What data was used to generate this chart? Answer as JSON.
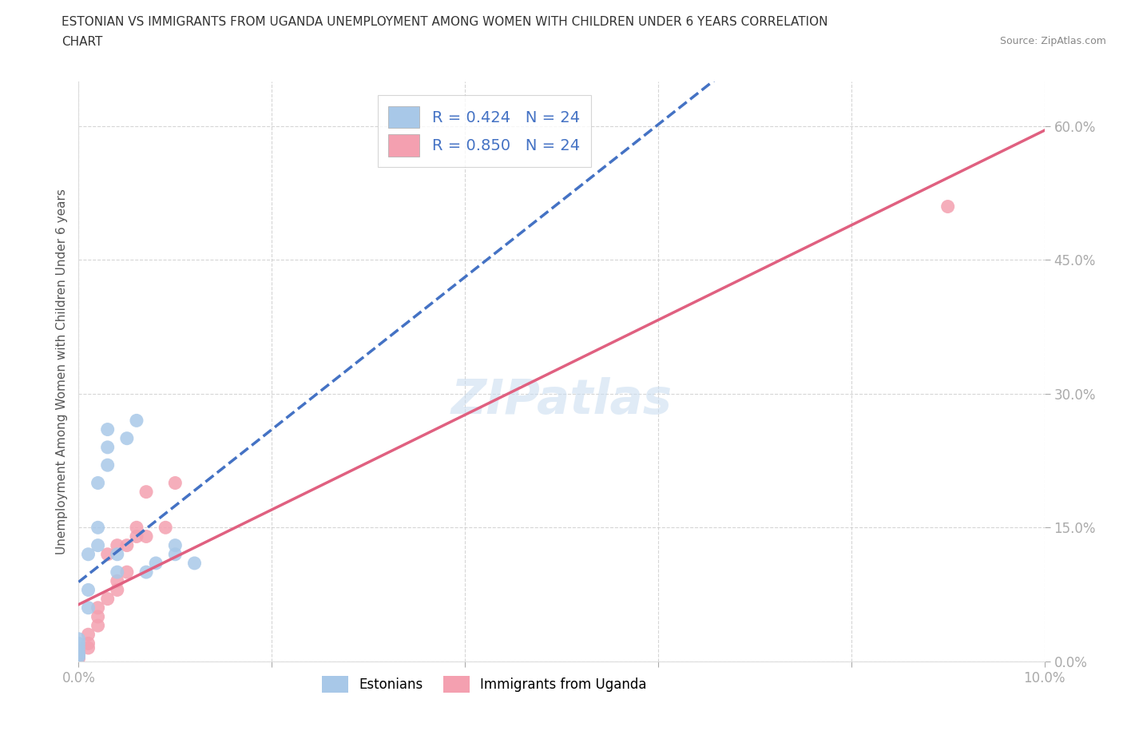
{
  "title_line1": "ESTONIAN VS IMMIGRANTS FROM UGANDA UNEMPLOYMENT AMONG WOMEN WITH CHILDREN UNDER 6 YEARS CORRELATION",
  "title_line2": "CHART",
  "source": "Source: ZipAtlas.com",
  "ylabel": "Unemployment Among Women with Children Under 6 years",
  "r_estonian": 0.424,
  "n_estonian": 24,
  "r_uganda": 0.85,
  "n_uganda": 24,
  "xlim": [
    0.0,
    0.1
  ],
  "ylim": [
    0.0,
    0.65
  ],
  "yticks": [
    0.0,
    0.15,
    0.3,
    0.45,
    0.6
  ],
  "ytick_labels": [
    "0.0%",
    "15.0%",
    "30.0%",
    "45.0%",
    "60.0%"
  ],
  "xticks": [
    0.0,
    0.02,
    0.04,
    0.06,
    0.08,
    0.1
  ],
  "xtick_labels": [
    "0.0%",
    "",
    "",
    "",
    "",
    "10.0%"
  ],
  "color_estonian": "#a8c8e8",
  "color_uganda": "#f4a0b0",
  "line_color_estonian": "#4472c4",
  "line_color_uganda": "#e06080",
  "watermark": "ZIPatlas",
  "background_color": "#ffffff",
  "grid_color": "#cccccc",
  "estonian_x": [
    0.0,
    0.0,
    0.0,
    0.0,
    0.0,
    0.0,
    0.001,
    0.001,
    0.001,
    0.002,
    0.002,
    0.002,
    0.003,
    0.003,
    0.003,
    0.004,
    0.004,
    0.005,
    0.006,
    0.007,
    0.008,
    0.01,
    0.01,
    0.012
  ],
  "estonian_y": [
    0.005,
    0.007,
    0.01,
    0.015,
    0.02,
    0.025,
    0.06,
    0.08,
    0.12,
    0.13,
    0.15,
    0.2,
    0.22,
    0.24,
    0.26,
    0.1,
    0.12,
    0.25,
    0.27,
    0.1,
    0.11,
    0.13,
    0.12,
    0.11
  ],
  "uganda_x": [
    0.0,
    0.0,
    0.0,
    0.0,
    0.001,
    0.001,
    0.001,
    0.002,
    0.002,
    0.002,
    0.003,
    0.003,
    0.004,
    0.004,
    0.004,
    0.005,
    0.005,
    0.006,
    0.006,
    0.007,
    0.007,
    0.009,
    0.01,
    0.09
  ],
  "uganda_y": [
    0.003,
    0.005,
    0.008,
    0.012,
    0.015,
    0.02,
    0.03,
    0.04,
    0.05,
    0.06,
    0.07,
    0.12,
    0.08,
    0.09,
    0.13,
    0.1,
    0.13,
    0.14,
    0.15,
    0.14,
    0.19,
    0.15,
    0.2,
    0.51
  ],
  "legend_r_color": "#4472c4",
  "legend_n_color": "#4472c4"
}
